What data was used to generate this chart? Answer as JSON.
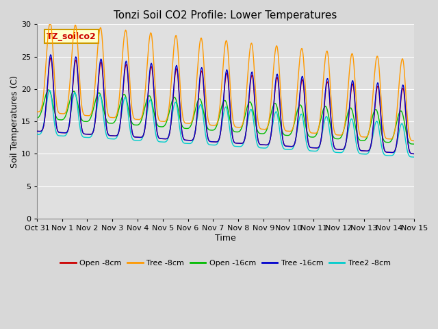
{
  "title": "Tonzi Soil CO2 Profile: Lower Temperatures",
  "xlabel": "Time",
  "ylabel": "Soil Temperatures (C)",
  "ylim": [
    0,
    30
  ],
  "yticks": [
    0,
    5,
    10,
    15,
    20,
    25,
    30
  ],
  "xlim_start": 0,
  "xlim_end": 15,
  "xtick_labels": [
    "Oct 31",
    "Nov 1",
    "Nov 2",
    "Nov 3",
    "Nov 4",
    "Nov 5",
    "Nov 6",
    "Nov 7",
    "Nov 8",
    "Nov 9",
    "Nov 10",
    "Nov 11",
    "Nov 12",
    "Nov 13",
    "Nov 14",
    "Nov 15"
  ],
  "legend_label": "TZ_soilco2",
  "legend_entries": [
    "Open -8cm",
    "Tree -8cm",
    "Open -16cm",
    "Tree -16cm",
    "Tree2 -8cm"
  ],
  "line_colors": [
    "#cc0000",
    "#ff9900",
    "#00bb00",
    "#0000cc",
    "#00cccc"
  ],
  "background_color": "#e8e8e8",
  "plot_bg_color": "#e0e0e0",
  "grid_color": "#ffffff",
  "annotation_color": "#cc0000",
  "annotation_bg": "#ffffcc",
  "annotation_border": "#cc9900",
  "n_days": 15,
  "pts_per_day": 48,
  "figsize": [
    6.4,
    4.8
  ],
  "dpi": 100
}
